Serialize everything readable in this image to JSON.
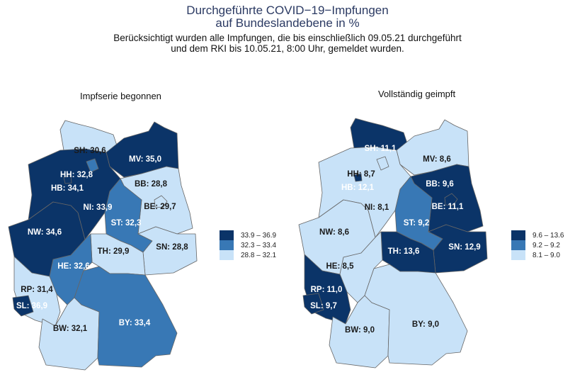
{
  "header": {
    "title_line1": "Durchgeführte COVID−19−Impfungen",
    "title_line2": "auf Bundeslandebene in %",
    "subtitle_line1": "Berücksichtigt wurden alle Impfungen, die bis einschließlich 09.05.21 durchgeführt",
    "subtitle_line2": "und dem RKI bis 10.05.21, 8:00 Uhr, gemeldet wurden."
  },
  "colors": {
    "dark": "#0b3468",
    "mid": "#3878b5",
    "light": "#c8e2f8",
    "border": "#666666",
    "text_dark": "#1a1a1a",
    "text_light": "#ffffff"
  },
  "maps": [
    {
      "title": "Impfserie begonnen",
      "legend": [
        "33.9 – 36.9",
        "32.3 – 33.4",
        "28.8 – 32.1"
      ],
      "states": [
        {
          "code": "SH",
          "label": "SH: 30,6",
          "value": 30.6,
          "class": 2
        },
        {
          "code": "MV",
          "label": "MV: 35,0",
          "value": 35.0,
          "class": 0
        },
        {
          "code": "NI",
          "label": "NI: 33,9",
          "value": 33.9,
          "class": 0
        },
        {
          "code": "HH",
          "label": "HH: 32,8",
          "value": 32.8,
          "class": 1
        },
        {
          "code": "HB",
          "label": "HB: 34,1",
          "value": 34.1,
          "class": 0
        },
        {
          "code": "BB",
          "label": "BB: 28,8",
          "value": 28.8,
          "class": 2
        },
        {
          "code": "BE",
          "label": "BE: 29,7",
          "value": 29.7,
          "class": 2
        },
        {
          "code": "ST",
          "label": "ST: 32,3",
          "value": 32.3,
          "class": 1
        },
        {
          "code": "NW",
          "label": "NW: 34,6",
          "value": 34.6,
          "class": 0
        },
        {
          "code": "SN",
          "label": "SN: 28,8",
          "value": 28.8,
          "class": 2
        },
        {
          "code": "TH",
          "label": "TH: 29,9",
          "value": 29.9,
          "class": 2
        },
        {
          "code": "HE",
          "label": "HE: 32,6",
          "value": 32.6,
          "class": 1
        },
        {
          "code": "RP",
          "label": "RP: 31,4",
          "value": 31.4,
          "class": 2
        },
        {
          "code": "SL",
          "label": "SL: 36,9",
          "value": 36.9,
          "class": 0
        },
        {
          "code": "BW",
          "label": "BW: 32,1",
          "value": 32.1,
          "class": 2
        },
        {
          "code": "BY",
          "label": "BY: 33,4",
          "value": 33.4,
          "class": 1
        }
      ]
    },
    {
      "title": "Vollständig geimpft",
      "legend": [
        "9.6 – 13.6",
        "9.2 –  9.2",
        "8.1 –  9.0"
      ],
      "states": [
        {
          "code": "SH",
          "label": "SH: 11,1",
          "value": 11.1,
          "class": 0
        },
        {
          "code": "MV",
          "label": "MV: 8,6",
          "value": 8.6,
          "class": 2
        },
        {
          "code": "NI",
          "label": "NI: 8,1",
          "value": 8.1,
          "class": 2
        },
        {
          "code": "HH",
          "label": "HH: 8,7",
          "value": 8.7,
          "class": 2
        },
        {
          "code": "HB",
          "label": "HB: 12,1",
          "value": 12.1,
          "class": 0
        },
        {
          "code": "BB",
          "label": "BB: 9,6",
          "value": 9.6,
          "class": 0
        },
        {
          "code": "BE",
          "label": "BE: 11,1",
          "value": 11.1,
          "class": 0
        },
        {
          "code": "ST",
          "label": "ST: 9,2",
          "value": 9.2,
          "class": 1
        },
        {
          "code": "NW",
          "label": "NW: 8,6",
          "value": 8.6,
          "class": 2
        },
        {
          "code": "SN",
          "label": "SN: 12,9",
          "value": 12.9,
          "class": 0
        },
        {
          "code": "TH",
          "label": "TH: 13,6",
          "value": 13.6,
          "class": 0
        },
        {
          "code": "HE",
          "label": "HE: 8,5",
          "value": 8.5,
          "class": 2
        },
        {
          "code": "RP",
          "label": "RP: 11,0",
          "value": 11.0,
          "class": 0
        },
        {
          "code": "SL",
          "label": "SL: 9,7",
          "value": 9.7,
          "class": 0
        },
        {
          "code": "BW",
          "label": "BW: 9,0",
          "value": 9.0,
          "class": 2
        },
        {
          "code": "BY",
          "label": "BY: 9,0",
          "value": 9.0,
          "class": 2
        }
      ]
    }
  ]
}
